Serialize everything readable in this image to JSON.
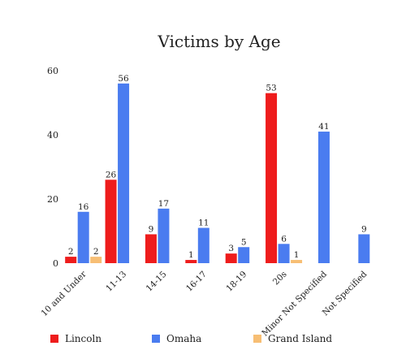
{
  "chart_data": {
    "type": "bar",
    "title": "Victims by Age",
    "xlabel": "",
    "ylabel": "",
    "ylim": [
      0,
      60
    ],
    "yticks": [
      0,
      20,
      40,
      60
    ],
    "grid": false,
    "legend_position": "bottom",
    "categories": [
      "10 and Under",
      "11-13",
      "14-15",
      "16-17",
      "18-19",
      "20s",
      "Minor Not Specified",
      "Not Specified"
    ],
    "series": [
      {
        "name": "Lincoln",
        "color": "#ee1c1c",
        "values": [
          2,
          26,
          9,
          1,
          3,
          53,
          null,
          null
        ]
      },
      {
        "name": "Omaha",
        "color": "#4a7cf0",
        "values": [
          16,
          56,
          17,
          11,
          5,
          6,
          41,
          9
        ]
      },
      {
        "name": "Grand Island",
        "color": "#f7be74",
        "values": [
          2,
          null,
          null,
          null,
          null,
          1,
          null,
          null
        ]
      }
    ]
  }
}
